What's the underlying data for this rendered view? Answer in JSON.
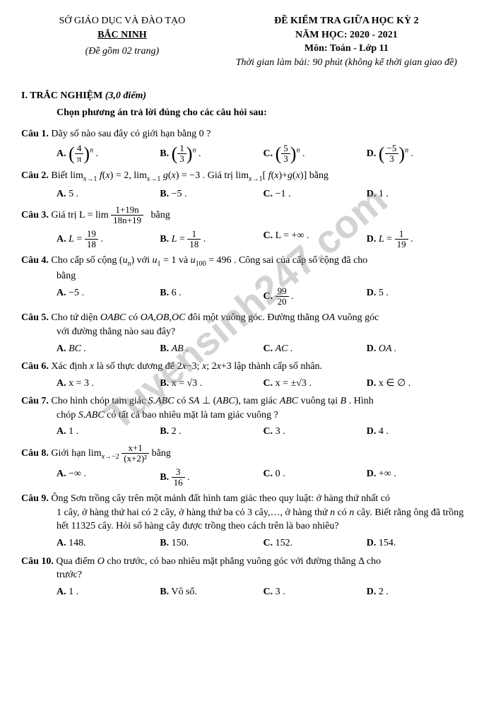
{
  "header": {
    "left_line1": "SỞ GIÁO DỤC VÀ ĐÀO TẠO",
    "left_line2": "BẮC NINH",
    "left_line3": "(Đề gồm 02 trang)",
    "right_line1": "ĐỀ KIỂM TRA GIỮA HỌC KỲ 2",
    "right_line2": "NĂM HỌC: 2020 - 2021",
    "right_line3": "Môn: Toán - Lớp 11",
    "right_line4": "Thời gian làm bài: 90 phút (không kể thời gian giao đề)"
  },
  "section": {
    "title": "I. TRẮC NGHIỆM",
    "points": "(3,0 điểm)",
    "instruction": "Chọn phương án trả lời đúng cho các câu hỏi sau:"
  },
  "watermark": "Tuyensinh247.com",
  "questions": [
    {
      "num": "Câu 1.",
      "text": "Dãy số nào sau đây có giới hạn bằng 0 ?",
      "opts": {
        "A": "(4/π)ⁿ",
        "B": "(1/3)ⁿ",
        "C": "(5/3)ⁿ",
        "D": "(−5/3)ⁿ"
      }
    },
    {
      "num": "Câu 2.",
      "text_pre": "Biết ",
      "text_mid": " = 2, ",
      "text_mid2": " = −3 . Giá trị ",
      "text_post": " bằng",
      "opts": {
        "A": "5 .",
        "B": "−5 .",
        "C": "−1 .",
        "D": "1 ."
      }
    },
    {
      "num": "Câu 3.",
      "text_pre": "Giá trị L = lim ",
      "text_post": " bằng",
      "frac_num": "1+19n",
      "frac_den": "18n+19",
      "opts": {
        "A_num": "19",
        "A_den": "18",
        "B_num": "1",
        "B_den": "18",
        "C": "L = +∞ .",
        "D_num": "1",
        "D_den": "19"
      }
    },
    {
      "num": "Câu 4.",
      "text": "Cho cấp số cộng (uₙ) với u₁ = 1 và u₁₀₀ = 496 . Công sai của cấp số cộng đã cho bằng",
      "opts": {
        "A": "−5 .",
        "B": "6 .",
        "C_num": "99",
        "C_den": "20",
        "D": "5 ."
      }
    },
    {
      "num": "Câu 5.",
      "text": "Cho tứ diện OABC có OA,OB,OC đôi một vuông góc. Đường thẳng OA vuông góc với đường thẳng nào sau đây?",
      "opts": {
        "A": "BC .",
        "B": "AB .",
        "C": "AC .",
        "D": "OA ."
      }
    },
    {
      "num": "Câu 6.",
      "text": "Xác định x là số thực dương để 2x−3; x; 2x+3 lập thành cấp số nhân.",
      "opts": {
        "A": "x = 3 .",
        "B": "x = √3 .",
        "C": "x = ±√3 .",
        "D": "x ∈ ∅ ."
      }
    },
    {
      "num": "Câu 7.",
      "text": "Cho hình chóp tam giác S.ABC có SA ⊥ (ABC), tam giác ABC vuông tại B . Hình chóp S.ABC có tất cả bao nhiêu mặt là tam giác vuông ?",
      "opts": {
        "A": "1 .",
        "B": "2 .",
        "C": "3 .",
        "D": "4 ."
      }
    },
    {
      "num": "Câu 8.",
      "text_pre": "Giới hạn ",
      "text_post": " bằng",
      "frac_num": "x+1",
      "frac_den": "(x+2)²",
      "opts": {
        "A": "−∞ .",
        "B_num": "3",
        "B_den": "16",
        "C": "0 .",
        "D": "+∞ ."
      }
    },
    {
      "num": "Câu 9.",
      "text": "Ông Sơn trồng cây trên một mảnh đất hình tam giác theo quy luật: ở hàng thứ nhất có 1 cây, ở hàng thứ hai có 2 cây, ở hàng thứ ba có 3 cây,…, ở hàng thứ n có n cây. Biết rằng ông đã trồng hết 11325 cây. Hỏi số hàng cây được trồng theo cách trên là bao nhiêu?",
      "opts": {
        "A": "148.",
        "B": "150.",
        "C": "152.",
        "D": "154."
      }
    },
    {
      "num": "Câu 10.",
      "text": "Qua điểm O cho trước, có bao nhiêu mặt phẳng vuông góc với đường thẳng Δ cho trước?",
      "opts": {
        "A": "1 .",
        "B": "Vô số.",
        "C": "3 .",
        "D": "2 ."
      }
    }
  ]
}
